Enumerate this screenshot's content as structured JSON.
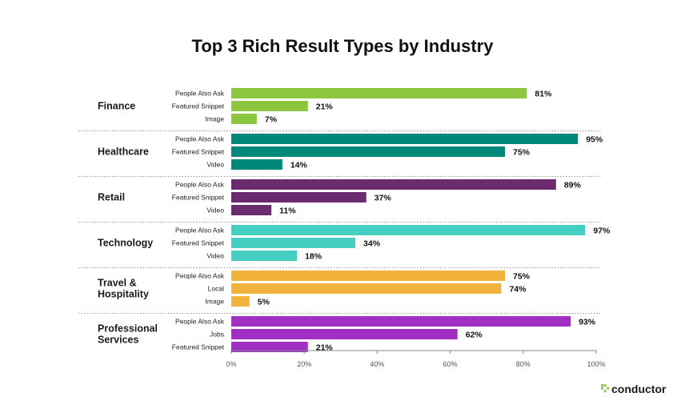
{
  "chart_data": {
    "type": "bar",
    "orientation": "horizontal",
    "title": "Top 3 Rich Result Types by Industry",
    "xlim": [
      0,
      100
    ],
    "x_ticks": [
      "0%",
      "20%",
      "40%",
      "60%",
      "80%",
      "100%"
    ],
    "value_suffix": "%",
    "groups": [
      {
        "name": "Finance",
        "color": "#8dc63f",
        "bars": [
          {
            "label": "People Also Ask",
            "value": 81
          },
          {
            "label": "Featured Snippet",
            "value": 21
          },
          {
            "label": "Image",
            "value": 7
          }
        ]
      },
      {
        "name": "Healthcare",
        "color": "#00897b",
        "bars": [
          {
            "label": "People Also Ask",
            "value": 95
          },
          {
            "label": "Featured Snippet",
            "value": 75
          },
          {
            "label": "Video",
            "value": 14
          }
        ]
      },
      {
        "name": "Retail",
        "color": "#6a2c6e",
        "bars": [
          {
            "label": "People Also Ask",
            "value": 89
          },
          {
            "label": "Featured Snippet",
            "value": 37
          },
          {
            "label": "Video",
            "value": 11
          }
        ]
      },
      {
        "name": "Technology",
        "color": "#44cfc2",
        "bars": [
          {
            "label": "People Also Ask",
            "value": 97
          },
          {
            "label": "Featured Snippet",
            "value": 34
          },
          {
            "label": "Video",
            "value": 18
          }
        ]
      },
      {
        "name": "Travel &\nHospitality",
        "color": "#f2b33d",
        "bars": [
          {
            "label": "People Also Ask",
            "value": 75
          },
          {
            "label": "Local",
            "value": 74
          },
          {
            "label": "Image",
            "value": 5
          }
        ]
      },
      {
        "name": "Professional\nServices",
        "color": "#a22fc4",
        "bars": [
          {
            "label": "People Also Ask",
            "value": 93
          },
          {
            "label": "Jobs",
            "value": 62
          },
          {
            "label": "Featured Snippet",
            "value": 21
          }
        ]
      }
    ],
    "grid": false,
    "legend": "none"
  },
  "branding": {
    "logo_text": "conductor",
    "logo_color": "#8dc63f"
  }
}
